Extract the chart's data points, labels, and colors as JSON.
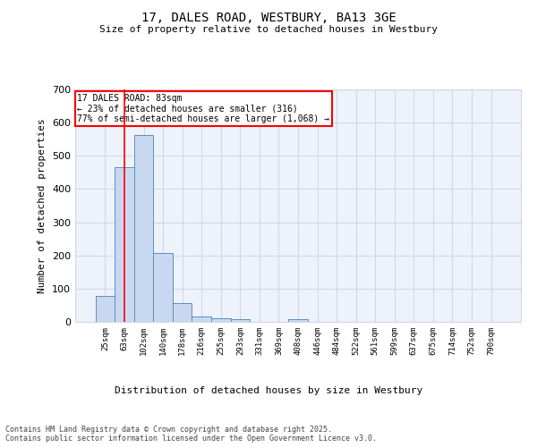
{
  "title_line1": "17, DALES ROAD, WESTBURY, BA13 3GE",
  "title_line2": "Size of property relative to detached houses in Westbury",
  "xlabel": "Distribution of detached houses by size in Westbury",
  "ylabel": "Number of detached properties",
  "categories": [
    "25sqm",
    "63sqm",
    "102sqm",
    "140sqm",
    "178sqm",
    "216sqm",
    "255sqm",
    "293sqm",
    "331sqm",
    "369sqm",
    "408sqm",
    "446sqm",
    "484sqm",
    "522sqm",
    "561sqm",
    "599sqm",
    "637sqm",
    "675sqm",
    "714sqm",
    "752sqm",
    "790sqm"
  ],
  "values": [
    78,
    467,
    563,
    207,
    57,
    15,
    10,
    9,
    0,
    0,
    8,
    0,
    0,
    0,
    0,
    0,
    0,
    0,
    0,
    0,
    0
  ],
  "bar_color": "#c8d8f0",
  "bar_edge_color": "#5b8ec4",
  "grid_color": "#d0d8e8",
  "background_color": "#eef2fa",
  "vline_color": "red",
  "annotation_text": "17 DALES ROAD: 83sqm\n← 23% of detached houses are smaller (316)\n77% of semi-detached houses are larger (1,068) →",
  "footnote": "Contains HM Land Registry data © Crown copyright and database right 2025.\nContains public sector information licensed under the Open Government Licence v3.0.",
  "ylim": [
    0,
    700
  ],
  "yticks": [
    0,
    100,
    200,
    300,
    400,
    500,
    600,
    700
  ],
  "fig_width": 6.0,
  "fig_height": 5.0,
  "dpi": 100
}
